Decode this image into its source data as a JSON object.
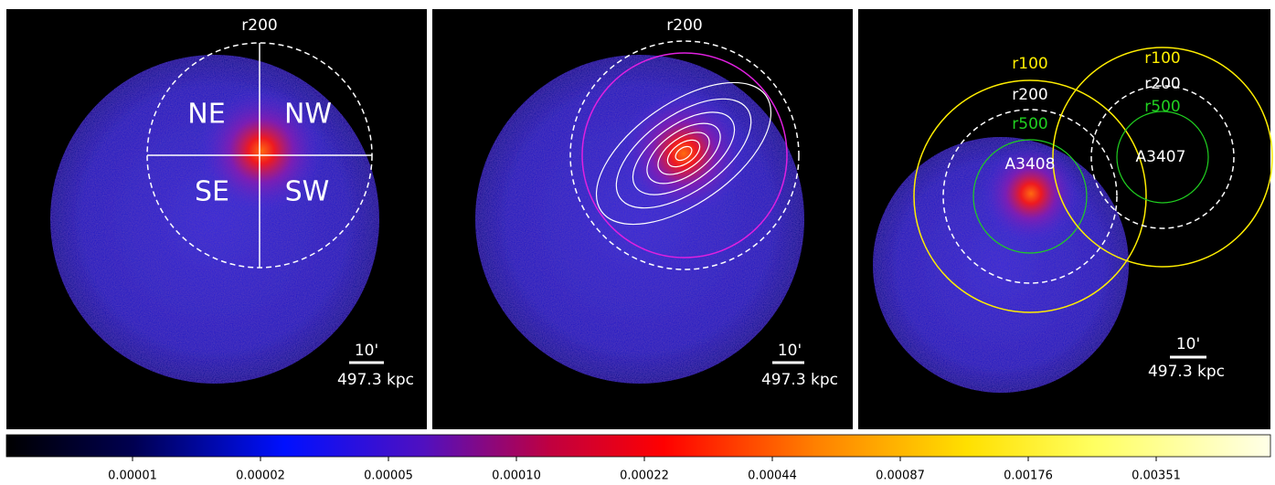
{
  "panels": [
    {
      "r200": "r200",
      "quadrants": [
        "NE",
        "NW",
        "SE",
        "SW"
      ],
      "scalebar": {
        "angle": "10'",
        "distance": "497.3 kpc"
      }
    },
    {
      "r200": "r200",
      "scalebar": {
        "angle": "10'",
        "distance": "497.3 kpc"
      }
    },
    {
      "clusters": [
        {
          "name": "A3408",
          "r100": "r100",
          "r200": "r200",
          "r500": "r500"
        },
        {
          "name": "A3407",
          "r100": "r100",
          "r200": "r200",
          "r500": "r500"
        }
      ],
      "scalebar": {
        "angle": "10'",
        "distance": "497.3 kpc"
      }
    }
  ],
  "colorbar": {
    "ticks": [
      "0.00001",
      "0.00002",
      "0.00005",
      "0.00010",
      "0.00022",
      "0.00044",
      "0.00087",
      "0.00176",
      "0.00351"
    ]
  }
}
